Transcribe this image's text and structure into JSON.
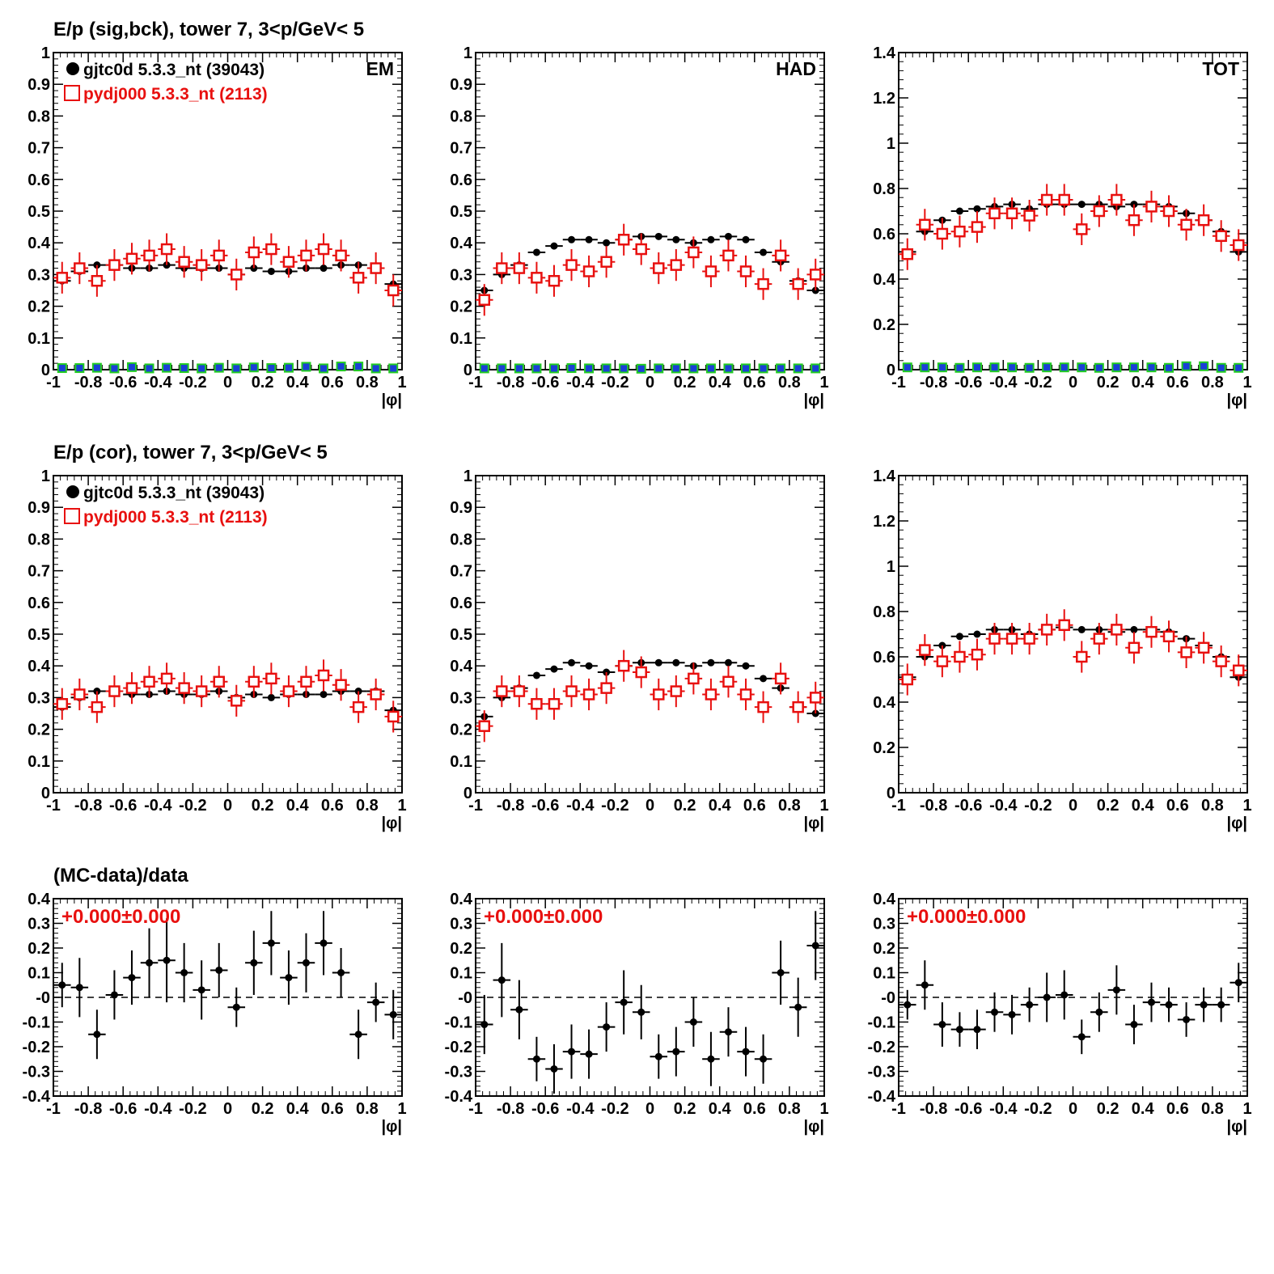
{
  "colors": {
    "data": "#000000",
    "mc": "#e8100f",
    "bck": "#22cc22",
    "bck_fill": "#1a3fd6",
    "frame": "#000000"
  },
  "rows": [
    {
      "title": "E/p (sig,bck), tower 7,  3<p/GeV< 5"
    },
    {
      "title": "E/p (cor), tower 7,  3<p/GeV< 5"
    },
    {
      "title": "(MC-data)/data"
    }
  ],
  "legend": {
    "data_label": "gjtc0d 5.3.3_nt (39043)",
    "mc_label": "pydj000 5.3.3_nt (2113)"
  },
  "ratio_text": "+0.000±0.000",
  "chart_data": [
    {
      "id": "sig-em",
      "type": "scatter",
      "tag": "EM",
      "xlabel": "|φ|",
      "ylabel": "",
      "xlim": [
        -1,
        1
      ],
      "ylim": [
        0,
        1
      ],
      "xticks": [
        "-1",
        "-0.8",
        "-0.6",
        "-0.4",
        "-0.2",
        "0",
        "0.2",
        "0.4",
        "0.6",
        "0.8",
        "1"
      ],
      "yticks": [
        "0",
        "0.1",
        "0.2",
        "0.3",
        "0.4",
        "0.5",
        "0.6",
        "0.7",
        "0.8",
        "0.9",
        "1"
      ],
      "x": [
        -0.95,
        -0.85,
        -0.75,
        -0.65,
        -0.55,
        -0.45,
        -0.35,
        -0.25,
        -0.15,
        -0.05,
        0.05,
        0.15,
        0.25,
        0.35,
        0.45,
        0.55,
        0.65,
        0.75,
        0.85,
        0.95
      ],
      "series": [
        {
          "name": "gjtc0d 5.3.3_nt (39043)",
          "marker": "dot",
          "values": [
            0.28,
            0.31,
            0.33,
            0.33,
            0.32,
            0.32,
            0.33,
            0.32,
            0.32,
            0.32,
            0.3,
            0.32,
            0.31,
            0.31,
            0.32,
            0.32,
            0.33,
            0.33,
            0.32,
            0.27
          ]
        },
        {
          "name": "pydj000 5.3.3_nt (2113)",
          "marker": "open-square",
          "values": [
            0.29,
            0.32,
            0.28,
            0.33,
            0.35,
            0.36,
            0.38,
            0.34,
            0.33,
            0.36,
            0.3,
            0.37,
            0.38,
            0.34,
            0.36,
            0.38,
            0.36,
            0.29,
            0.32,
            0.25
          ]
        },
        {
          "name": "",
          "marker": "bck",
          "values": [
            0.005,
            0.005,
            0.006,
            0.004,
            0.008,
            0.004,
            0.006,
            0.005,
            0.004,
            0.006,
            0.004,
            0.007,
            0.005,
            0.006,
            0.009,
            0.004,
            0.01,
            0.01,
            0.004,
            0.004
          ]
        }
      ]
    },
    {
      "id": "sig-had",
      "type": "scatter",
      "tag": "HAD",
      "xlabel": "|φ|",
      "ylabel": "",
      "xlim": [
        -1,
        1
      ],
      "ylim": [
        0,
        1
      ],
      "xticks": [
        "-1",
        "-0.8",
        "-0.6",
        "-0.4",
        "-0.2",
        "0",
        "0.2",
        "0.4",
        "0.6",
        "0.8",
        "1"
      ],
      "yticks": [
        "0",
        "0.1",
        "0.2",
        "0.3",
        "0.4",
        "0.5",
        "0.6",
        "0.7",
        "0.8",
        "0.9",
        "1"
      ],
      "x": [
        -0.95,
        -0.85,
        -0.75,
        -0.65,
        -0.55,
        -0.45,
        -0.35,
        -0.25,
        -0.15,
        -0.05,
        0.05,
        0.15,
        0.25,
        0.35,
        0.45,
        0.55,
        0.65,
        0.75,
        0.85,
        0.95
      ],
      "series": [
        {
          "name": "gjtc0d 5.3.3_nt (39043)",
          "marker": "dot",
          "values": [
            0.25,
            0.3,
            0.33,
            0.37,
            0.39,
            0.41,
            0.41,
            0.4,
            0.41,
            0.42,
            0.42,
            0.41,
            0.4,
            0.41,
            0.42,
            0.41,
            0.37,
            0.34,
            0.28,
            0.25
          ]
        },
        {
          "name": "pydj000 5.3.3_nt (2113)",
          "marker": "open-square",
          "values": [
            0.22,
            0.32,
            0.32,
            0.29,
            0.28,
            0.33,
            0.31,
            0.34,
            0.41,
            0.38,
            0.32,
            0.33,
            0.37,
            0.31,
            0.36,
            0.31,
            0.27,
            0.36,
            0.27,
            0.3
          ]
        },
        {
          "name": "",
          "marker": "bck",
          "values": [
            0.004,
            0.004,
            0.004,
            0.004,
            0.004,
            0.005,
            0.004,
            0.004,
            0.004,
            0.003,
            0.004,
            0.004,
            0.004,
            0.004,
            0.004,
            0.004,
            0.004,
            0.004,
            0.004,
            0.004
          ]
        }
      ]
    },
    {
      "id": "sig-tot",
      "type": "scatter",
      "tag": "TOT",
      "xlabel": "|φ|",
      "ylabel": "",
      "xlim": [
        -1,
        1
      ],
      "ylim": [
        0,
        1.4
      ],
      "xticks": [
        "-1",
        "-0.8",
        "-0.6",
        "-0.4",
        "-0.2",
        "0",
        "0.2",
        "0.4",
        "0.6",
        "0.8",
        "1"
      ],
      "yticks": [
        "0",
        "0.2",
        "0.4",
        "0.6",
        "0.8",
        "1",
        "1.2",
        "1.4"
      ],
      "x": [
        -0.95,
        -0.85,
        -0.75,
        -0.65,
        -0.55,
        -0.45,
        -0.35,
        -0.25,
        -0.15,
        -0.05,
        0.05,
        0.15,
        0.25,
        0.35,
        0.45,
        0.55,
        0.65,
        0.75,
        0.85,
        0.95
      ],
      "series": [
        {
          "name": "gjtc0d 5.3.3_nt (39043)",
          "marker": "dot",
          "values": [
            0.52,
            0.61,
            0.66,
            0.7,
            0.71,
            0.72,
            0.73,
            0.71,
            0.73,
            0.73,
            0.73,
            0.73,
            0.72,
            0.73,
            0.73,
            0.72,
            0.69,
            0.66,
            0.61,
            0.52
          ]
        },
        {
          "name": "pydj000 5.3.3_nt (2113)",
          "marker": "open-square",
          "values": [
            0.51,
            0.64,
            0.6,
            0.61,
            0.63,
            0.69,
            0.69,
            0.68,
            0.75,
            0.75,
            0.62,
            0.7,
            0.75,
            0.66,
            0.72,
            0.7,
            0.64,
            0.66,
            0.59,
            0.55
          ]
        },
        {
          "name": "",
          "marker": "bck",
          "values": [
            0.01,
            0.01,
            0.01,
            0.008,
            0.01,
            0.01,
            0.01,
            0.008,
            0.01,
            0.01,
            0.01,
            0.008,
            0.01,
            0.01,
            0.01,
            0.008,
            0.015,
            0.015,
            0.008,
            0.008
          ]
        }
      ]
    },
    {
      "id": "cor-em",
      "type": "scatter",
      "tag": "",
      "xlabel": "|φ|",
      "ylabel": "",
      "xlim": [
        -1,
        1
      ],
      "ylim": [
        0,
        1
      ],
      "xticks": [
        "-1",
        "-0.8",
        "-0.6",
        "-0.4",
        "-0.2",
        "0",
        "0.2",
        "0.4",
        "0.6",
        "0.8",
        "1"
      ],
      "yticks": [
        "0",
        "0.1",
        "0.2",
        "0.3",
        "0.4",
        "0.5",
        "0.6",
        "0.7",
        "0.8",
        "0.9",
        "1"
      ],
      "x": [
        -0.95,
        -0.85,
        -0.75,
        -0.65,
        -0.55,
        -0.45,
        -0.35,
        -0.25,
        -0.15,
        -0.05,
        0.05,
        0.15,
        0.25,
        0.35,
        0.45,
        0.55,
        0.65,
        0.75,
        0.85,
        0.95
      ],
      "series": [
        {
          "name": "gjtc0d 5.3.3_nt (39043)",
          "marker": "dot",
          "values": [
            0.27,
            0.3,
            0.32,
            0.32,
            0.31,
            0.31,
            0.32,
            0.31,
            0.31,
            0.32,
            0.3,
            0.31,
            0.3,
            0.31,
            0.31,
            0.31,
            0.32,
            0.32,
            0.32,
            0.26
          ]
        },
        {
          "name": "pydj000 5.3.3_nt (2113)",
          "marker": "open-square",
          "values": [
            0.28,
            0.31,
            0.27,
            0.32,
            0.33,
            0.35,
            0.36,
            0.33,
            0.32,
            0.35,
            0.29,
            0.35,
            0.36,
            0.32,
            0.35,
            0.37,
            0.34,
            0.27,
            0.31,
            0.24
          ]
        }
      ]
    },
    {
      "id": "cor-had",
      "type": "scatter",
      "tag": "",
      "xlabel": "|φ|",
      "ylabel": "",
      "xlim": [
        -1,
        1
      ],
      "ylim": [
        0,
        1
      ],
      "xticks": [
        "-1",
        "-0.8",
        "-0.6",
        "-0.4",
        "-0.2",
        "0",
        "0.2",
        "0.4",
        "0.6",
        "0.8",
        "1"
      ],
      "yticks": [
        "0",
        "0.1",
        "0.2",
        "0.3",
        "0.4",
        "0.5",
        "0.6",
        "0.7",
        "0.8",
        "0.9",
        "1"
      ],
      "x": [
        -0.95,
        -0.85,
        -0.75,
        -0.65,
        -0.55,
        -0.45,
        -0.35,
        -0.25,
        -0.15,
        -0.05,
        0.05,
        0.15,
        0.25,
        0.35,
        0.45,
        0.55,
        0.65,
        0.75,
        0.85,
        0.95
      ],
      "series": [
        {
          "name": "gjtc0d 5.3.3_nt (39043)",
          "marker": "dot",
          "values": [
            0.24,
            0.3,
            0.33,
            0.37,
            0.39,
            0.41,
            0.4,
            0.38,
            0.4,
            0.41,
            0.41,
            0.41,
            0.4,
            0.41,
            0.41,
            0.4,
            0.36,
            0.33,
            0.27,
            0.25
          ]
        },
        {
          "name": "pydj000 5.3.3_nt (2113)",
          "marker": "open-square",
          "values": [
            0.21,
            0.32,
            0.32,
            0.28,
            0.28,
            0.32,
            0.31,
            0.33,
            0.4,
            0.38,
            0.31,
            0.32,
            0.36,
            0.31,
            0.35,
            0.31,
            0.27,
            0.36,
            0.27,
            0.3
          ]
        }
      ]
    },
    {
      "id": "cor-tot",
      "type": "scatter",
      "tag": "",
      "xlabel": "|φ|",
      "ylabel": "",
      "xlim": [
        -1,
        1
      ],
      "ylim": [
        0,
        1.4
      ],
      "xticks": [
        "-1",
        "-0.8",
        "-0.6",
        "-0.4",
        "-0.2",
        "0",
        "0.2",
        "0.4",
        "0.6",
        "0.8",
        "1"
      ],
      "yticks": [
        "0",
        "0.2",
        "0.4",
        "0.6",
        "0.8",
        "1",
        "1.2",
        "1.4"
      ],
      "x": [
        -0.95,
        -0.85,
        -0.75,
        -0.65,
        -0.55,
        -0.45,
        -0.35,
        -0.25,
        -0.15,
        -0.05,
        0.05,
        0.15,
        0.25,
        0.35,
        0.45,
        0.55,
        0.65,
        0.75,
        0.85,
        0.95
      ],
      "series": [
        {
          "name": "gjtc0d 5.3.3_nt (39043)",
          "marker": "dot",
          "values": [
            0.51,
            0.6,
            0.65,
            0.69,
            0.7,
            0.72,
            0.72,
            0.7,
            0.72,
            0.73,
            0.72,
            0.72,
            0.71,
            0.72,
            0.72,
            0.71,
            0.68,
            0.65,
            0.6,
            0.51
          ]
        },
        {
          "name": "pydj000 5.3.3_nt (2113)",
          "marker": "open-square",
          "values": [
            0.5,
            0.63,
            0.58,
            0.6,
            0.61,
            0.68,
            0.68,
            0.68,
            0.72,
            0.74,
            0.6,
            0.68,
            0.72,
            0.64,
            0.71,
            0.69,
            0.62,
            0.64,
            0.58,
            0.54
          ]
        }
      ]
    },
    {
      "id": "ratio-em",
      "type": "scatter",
      "tag": "",
      "xlabel": "|φ|",
      "ylabel": "",
      "xlim": [
        -1,
        1
      ],
      "ylim": [
        -0.4,
        0.4
      ],
      "xticks": [
        "-1",
        "-0.8",
        "-0.6",
        "-0.4",
        "-0.2",
        "0",
        "0.2",
        "0.4",
        "0.6",
        "0.8",
        "1"
      ],
      "yticks": [
        "-0.4",
        "-0.3",
        "-0.2",
        "-0.1",
        "-0",
        "0.1",
        "0.2",
        "0.3",
        "0.4"
      ],
      "x": [
        -0.95,
        -0.85,
        -0.75,
        -0.65,
        -0.55,
        -0.45,
        -0.35,
        -0.25,
        -0.15,
        -0.05,
        0.05,
        0.15,
        0.25,
        0.35,
        0.45,
        0.55,
        0.65,
        0.75,
        0.85,
        0.95
      ],
      "series": [
        {
          "name": "",
          "marker": "ratio",
          "values": [
            0.05,
            0.04,
            -0.15,
            0.01,
            0.08,
            0.14,
            0.15,
            0.1,
            0.03,
            0.11,
            -0.04,
            0.14,
            0.22,
            0.08,
            0.14,
            0.22,
            0.1,
            -0.15,
            -0.02,
            -0.07
          ],
          "errors": [
            0.09,
            0.12,
            0.1,
            0.1,
            0.11,
            0.14,
            0.17,
            0.12,
            0.12,
            0.11,
            0.08,
            0.13,
            0.13,
            0.11,
            0.12,
            0.13,
            0.1,
            0.1,
            0.08,
            0.1
          ]
        }
      ]
    },
    {
      "id": "ratio-had",
      "type": "scatter",
      "tag": "",
      "xlabel": "|φ|",
      "ylabel": "",
      "xlim": [
        -1,
        1
      ],
      "ylim": [
        -0.4,
        0.4
      ],
      "xticks": [
        "-1",
        "-0.8",
        "-0.6",
        "-0.4",
        "-0.2",
        "0",
        "0.2",
        "0.4",
        "0.6",
        "0.8",
        "1"
      ],
      "yticks": [
        "-0.4",
        "-0.3",
        "-0.2",
        "-0.1",
        "-0",
        "0.1",
        "0.2",
        "0.3",
        "0.4"
      ],
      "x": [
        -0.95,
        -0.85,
        -0.75,
        -0.65,
        -0.55,
        -0.45,
        -0.35,
        -0.25,
        -0.15,
        -0.05,
        0.05,
        0.15,
        0.25,
        0.35,
        0.45,
        0.55,
        0.65,
        0.75,
        0.85,
        0.95
      ],
      "series": [
        {
          "name": "",
          "marker": "ratio",
          "values": [
            -0.11,
            0.07,
            -0.05,
            -0.25,
            -0.29,
            -0.22,
            -0.23,
            -0.12,
            -0.02,
            -0.06,
            -0.24,
            -0.22,
            -0.1,
            -0.25,
            -0.14,
            -0.22,
            -0.25,
            0.1,
            -0.04,
            0.21
          ],
          "errors": [
            0.12,
            0.15,
            0.12,
            0.09,
            0.1,
            0.11,
            0.1,
            0.1,
            0.13,
            0.11,
            0.09,
            0.1,
            0.1,
            0.11,
            0.1,
            0.1,
            0.1,
            0.13,
            0.12,
            0.14
          ]
        }
      ]
    },
    {
      "id": "ratio-tot",
      "type": "scatter",
      "tag": "",
      "xlabel": "|φ|",
      "ylabel": "",
      "xlim": [
        -1,
        1
      ],
      "ylim": [
        -0.4,
        0.4
      ],
      "xticks": [
        "-1",
        "-0.8",
        "-0.6",
        "-0.4",
        "-0.2",
        "0",
        "0.2",
        "0.4",
        "0.6",
        "0.8",
        "1"
      ],
      "yticks": [
        "-0.4",
        "-0.3",
        "-0.2",
        "-0.1",
        "-0",
        "0.1",
        "0.2",
        "0.3",
        "0.4"
      ],
      "x": [
        -0.95,
        -0.85,
        -0.75,
        -0.65,
        -0.55,
        -0.45,
        -0.35,
        -0.25,
        -0.15,
        -0.05,
        0.05,
        0.15,
        0.25,
        0.35,
        0.45,
        0.55,
        0.65,
        0.75,
        0.85,
        0.95
      ],
      "series": [
        {
          "name": "",
          "marker": "ratio",
          "values": [
            -0.03,
            0.05,
            -0.11,
            -0.13,
            -0.13,
            -0.06,
            -0.07,
            -0.03,
            0.0,
            0.01,
            -0.16,
            -0.06,
            0.03,
            -0.11,
            -0.02,
            -0.03,
            -0.09,
            -0.03,
            -0.03,
            0.06
          ],
          "errors": [
            0.06,
            0.1,
            0.09,
            0.07,
            0.08,
            0.08,
            0.08,
            0.07,
            0.1,
            0.1,
            0.07,
            0.08,
            0.1,
            0.08,
            0.08,
            0.07,
            0.07,
            0.07,
            0.07,
            0.08
          ]
        }
      ]
    }
  ]
}
